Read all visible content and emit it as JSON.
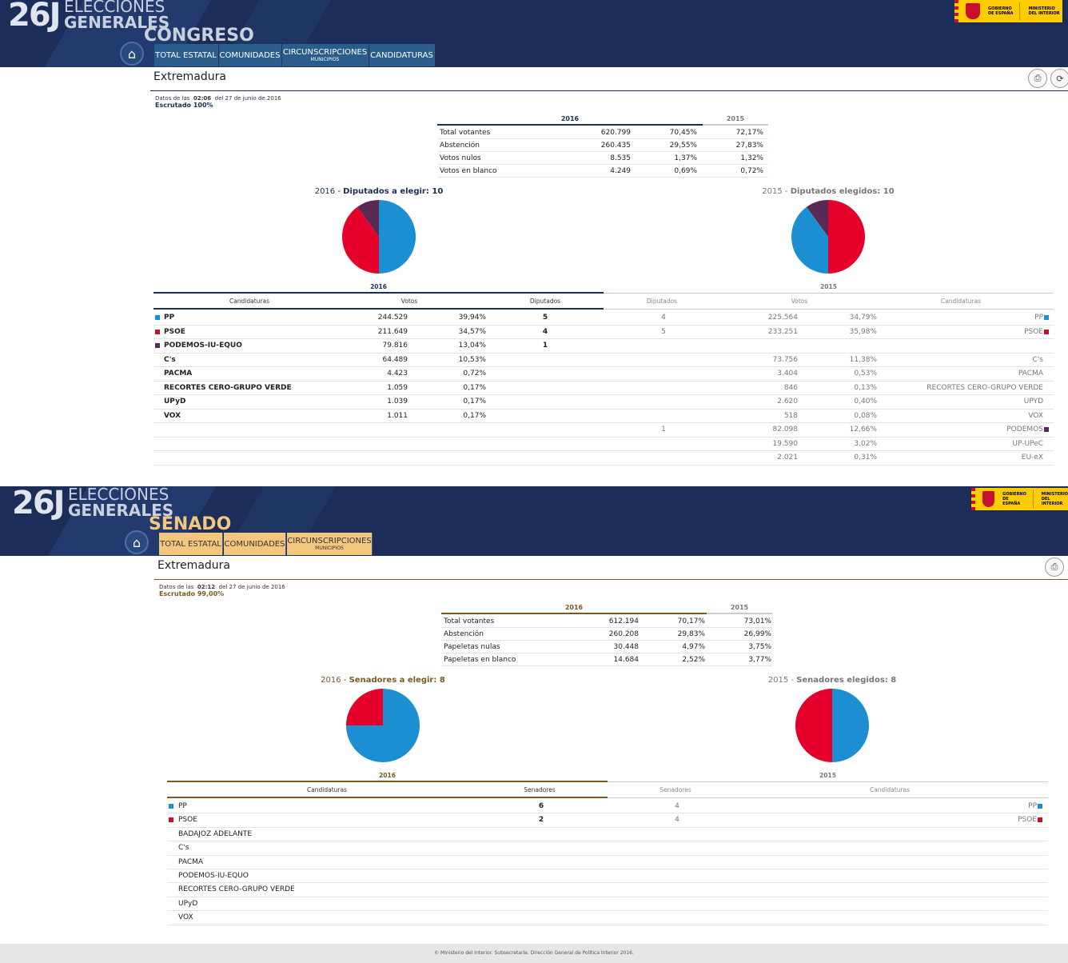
{
  "congreso": {
    "logo": {
      "num": "26J",
      "line1": "ELECCIONES",
      "line2": "GENERALES"
    },
    "chamber": "CONGRESO",
    "gob": {
      "l1": "GOBIERNO",
      "l2": "DE ESPAÑA",
      "l3": "MINISTERIO",
      "l4": "DEL INTERIOR"
    },
    "nav": [
      {
        "label": "TOTAL ESTATAL",
        "sub": ""
      },
      {
        "label": "COMUNIDADES",
        "sub": ""
      },
      {
        "label": "CIRCUNSCRIPCIONES",
        "sub": "MUNICIPIOS"
      },
      {
        "label": "CANDIDATURAS",
        "sub": ""
      }
    ],
    "region": "Extremadura",
    "meta": {
      "prefix": "Datos de las",
      "time": "02:06",
      "suffix": "del 27 de junio de 2016",
      "escrutado": "Escrutado 100%"
    },
    "summary": {
      "year_new": "2016",
      "year_old": "2015",
      "rows": [
        {
          "label": "Total votantes",
          "v": "620.799",
          "p": "70,45%",
          "old": "72,17%"
        },
        {
          "label": "Abstención",
          "v": "260.435",
          "p": "29,55%",
          "old": "27,83%"
        },
        {
          "label": "Votos nulos",
          "v": "8.535",
          "p": "1,37%",
          "old": "1,32%"
        },
        {
          "label": "Votos en blanco",
          "v": "4.249",
          "p": "0,69%",
          "old": "0,72%"
        }
      ]
    },
    "pie_new": {
      "year": "2016",
      "label": "Diputados a elegir",
      "count": "10",
      "seats": [
        {
          "party": "PP",
          "value": 5,
          "color": "#1b8fd2"
        },
        {
          "party": "PSOE",
          "value": 4,
          "color": "#e4002b"
        },
        {
          "party": "PODEMOS-IU-EQUO",
          "value": 1,
          "color": "#5a2a55"
        }
      ]
    },
    "pie_old": {
      "year": "2015",
      "label": "Diputados elegidos",
      "count": "10",
      "seats": [
        {
          "party": "PSOE",
          "value": 5,
          "color": "#e4002b"
        },
        {
          "party": "PP",
          "value": 4,
          "color": "#1b8fd2"
        },
        {
          "party": "PODEMOS",
          "value": 1,
          "color": "#5a2a55"
        }
      ]
    },
    "results_head": {
      "year_new": "2016",
      "year_old": "2015",
      "cand": "Candidaturas",
      "votos": "Votos",
      "dip": "Diputados"
    },
    "results": [
      {
        "color": "#1b8fd2",
        "name": "PP",
        "votes": "244.529",
        "pct": "39,94%",
        "seats": "5",
        "old_seats": "4",
        "old_votes": "225.564",
        "old_pct": "34,79%",
        "old_name": "PP",
        "old_color": "#1b8fd2"
      },
      {
        "color": "#c8102e",
        "name": "PSOE",
        "votes": "211.649",
        "pct": "34,57%",
        "seats": "4",
        "old_seats": "5",
        "old_votes": "233.251",
        "old_pct": "35,98%",
        "old_name": "PSOE",
        "old_color": "#c8102e"
      },
      {
        "color": "#5a2a55",
        "name": "PODEMOS-IU-EQUO",
        "votes": "79.816",
        "pct": "13,04%",
        "seats": "1",
        "old_seats": "",
        "old_votes": "",
        "old_pct": "",
        "old_name": "",
        "old_color": ""
      },
      {
        "color": "",
        "name": "C's",
        "votes": "64.489",
        "pct": "10,53%",
        "seats": "",
        "old_seats": "",
        "old_votes": "73.756",
        "old_pct": "11,38%",
        "old_name": "C's",
        "old_color": ""
      },
      {
        "color": "",
        "name": "PACMA",
        "votes": "4.423",
        "pct": "0,72%",
        "seats": "",
        "old_seats": "",
        "old_votes": "3.404",
        "old_pct": "0,53%",
        "old_name": "PACMA",
        "old_color": ""
      },
      {
        "color": "",
        "name": "RECORTES CERO-GRUPO VERDE",
        "votes": "1.059",
        "pct": "0,17%",
        "seats": "",
        "old_seats": "",
        "old_votes": "846",
        "old_pct": "0,13%",
        "old_name": "RECORTES CERO-GRUPO VERDE",
        "old_color": ""
      },
      {
        "color": "",
        "name": "UPyD",
        "votes": "1.039",
        "pct": "0,17%",
        "seats": "",
        "old_seats": "",
        "old_votes": "2.620",
        "old_pct": "0,40%",
        "old_name": "UPYD",
        "old_color": ""
      },
      {
        "color": "",
        "name": "VOX",
        "votes": "1.011",
        "pct": "0,17%",
        "seats": "",
        "old_seats": "",
        "old_votes": "518",
        "old_pct": "0,08%",
        "old_name": "VOX",
        "old_color": ""
      },
      {
        "color": "",
        "name": "",
        "votes": "",
        "pct": "",
        "seats": "",
        "old_seats": "1",
        "old_votes": "82.098",
        "old_pct": "12,66%",
        "old_name": "PODEMOS",
        "old_color": "#5a2a55"
      },
      {
        "color": "",
        "name": "",
        "votes": "",
        "pct": "",
        "seats": "",
        "old_seats": "",
        "old_votes": "19.590",
        "old_pct": "3,02%",
        "old_name": "UP-UPeC",
        "old_color": ""
      },
      {
        "color": "",
        "name": "",
        "votes": "",
        "pct": "",
        "seats": "",
        "old_seats": "",
        "old_votes": "2.021",
        "old_pct": "0,31%",
        "old_name": "EU-eX",
        "old_color": ""
      }
    ]
  },
  "senado": {
    "logo": {
      "num": "26J",
      "line1": "ELECCIONES",
      "line2": "GENERALES"
    },
    "chamber": "SENADO",
    "gob": {
      "l1": "GOBIERNO",
      "l2": "DE ESPAÑA",
      "l3": "MINISTERIO",
      "l4": "DEL INTERIOR"
    },
    "nav": [
      {
        "label": "TOTAL ESTATAL",
        "sub": ""
      },
      {
        "label": "COMUNIDADES",
        "sub": ""
      },
      {
        "label": "CIRCUNSCRIPCIONES",
        "sub": "MUNICIPIOS"
      }
    ],
    "region": "Extremadura",
    "meta": {
      "prefix": "Datos de las",
      "time": "02:12",
      "suffix": "del 27 de junio de 2016",
      "escrutado": "Escrutado 99,00%"
    },
    "summary": {
      "year_new": "2016",
      "year_old": "2015",
      "rows": [
        {
          "label": "Total votantes",
          "v": "612.194",
          "p": "70,17%",
          "old": "73,01%"
        },
        {
          "label": "Abstención",
          "v": "260.208",
          "p": "29,83%",
          "old": "26,99%"
        },
        {
          "label": "Papeletas nulas",
          "v": "30.448",
          "p": "4,97%",
          "old": "3,75%"
        },
        {
          "label": "Papeletas en blanco",
          "v": "14.684",
          "p": "2,52%",
          "old": "3,77%"
        }
      ]
    },
    "pie_new": {
      "year": "2016",
      "label": "Senadores a elegir",
      "count": "8",
      "seats": [
        {
          "party": "PP",
          "value": 6,
          "color": "#1b8fd2"
        },
        {
          "party": "PSOE",
          "value": 2,
          "color": "#e4002b"
        }
      ]
    },
    "pie_old": {
      "year": "2015",
      "label": "Senadores elegidos",
      "count": "8",
      "seats": [
        {
          "party": "PP",
          "value": 4,
          "color": "#1b8fd2"
        },
        {
          "party": "PSOE",
          "value": 4,
          "color": "#e4002b"
        }
      ]
    },
    "results_head": {
      "year_new": "2016",
      "year_old": "2015",
      "cand": "Candidaturas",
      "sen": "Senadores"
    },
    "results": [
      {
        "color": "#1b8fd2",
        "name": "PP",
        "seats": "6",
        "old_seats": "4",
        "old_name": "PP",
        "old_color": "#1b8fd2"
      },
      {
        "color": "#c8102e",
        "name": "PSOE",
        "seats": "2",
        "old_seats": "4",
        "old_name": "PSOE",
        "old_color": "#c8102e"
      },
      {
        "color": "",
        "name": "BADAJOZ ADELANTE",
        "seats": "",
        "old_seats": "",
        "old_name": "",
        "old_color": ""
      },
      {
        "color": "",
        "name": "C's",
        "seats": "",
        "old_seats": "",
        "old_name": "",
        "old_color": ""
      },
      {
        "color": "",
        "name": "PACMA",
        "seats": "",
        "old_seats": "",
        "old_name": "",
        "old_color": ""
      },
      {
        "color": "",
        "name": "PODEMOS-IU-EQUO",
        "seats": "",
        "old_seats": "",
        "old_name": "",
        "old_color": ""
      },
      {
        "color": "",
        "name": "RECORTES CERO-GRUPO VERDE",
        "seats": "",
        "old_seats": "",
        "old_name": "",
        "old_color": ""
      },
      {
        "color": "",
        "name": "UPyD",
        "seats": "",
        "old_seats": "",
        "old_name": "",
        "old_color": ""
      },
      {
        "color": "",
        "name": "VOX",
        "seats": "",
        "old_seats": "",
        "old_name": "",
        "old_color": ""
      }
    ]
  },
  "colors": {
    "navy": "#1b2d58",
    "congreso_accent": "#1b2d58",
    "senado_accent": "#7a5a22",
    "senado_nav": "#f4c77f",
    "senado_chamber": "#f4c77f"
  },
  "footer": "© Ministerio del Interior. Subsecretaría. Dirección General de Política Interior 2016."
}
